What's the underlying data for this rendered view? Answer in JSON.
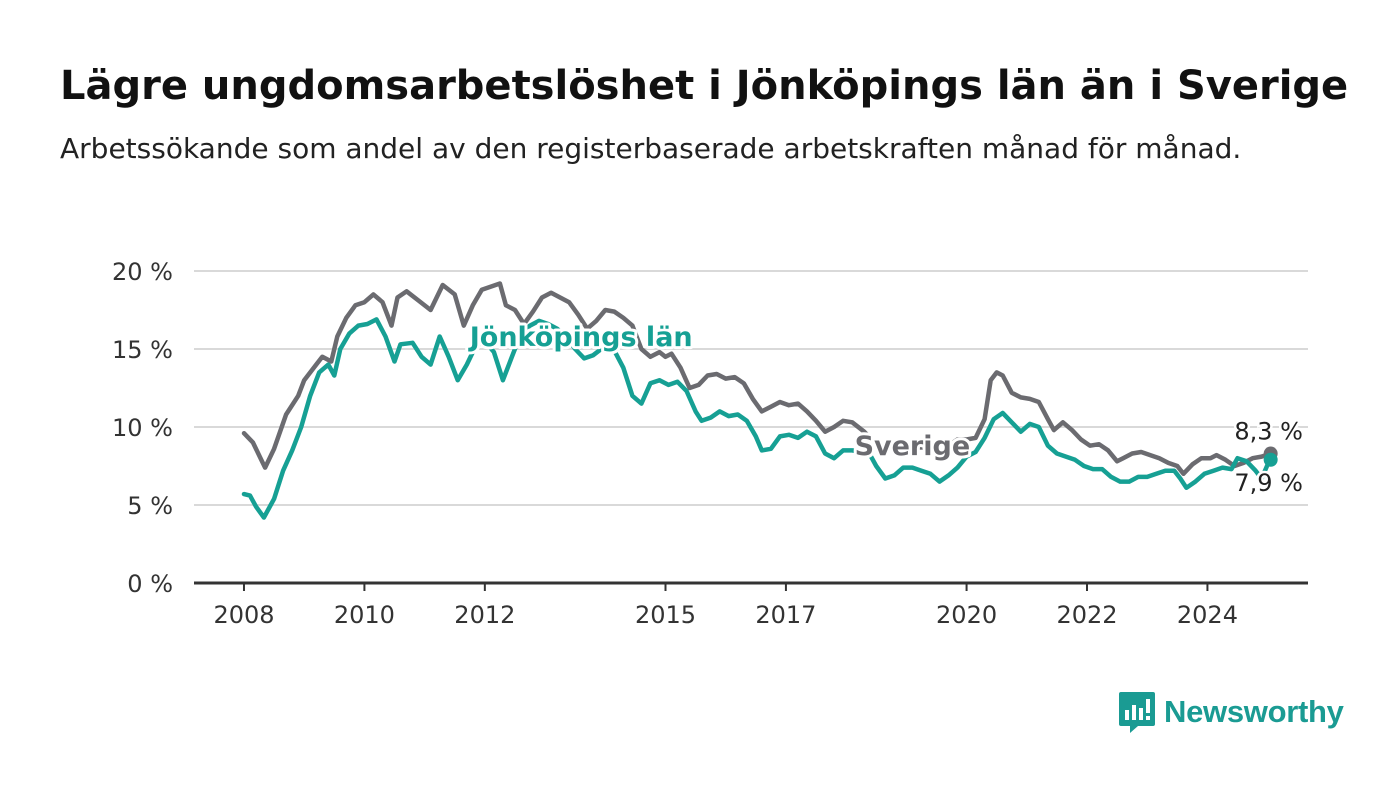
{
  "title": "Lägre ungdomsarbetslöshet i Jönköpings län än i Sverige",
  "subtitle": "Arbetssökande som andel av den registerbaserade arbetskraften månad för månad.",
  "brand": {
    "name": "Newsworthy",
    "icon": "newsworthy-logo-icon",
    "color": "#1a9b93"
  },
  "chart_data": {
    "type": "line",
    "title": "Lägre ungdomsarbetslöshet i Jönköpings län än i Sverige",
    "subtitle": "Arbetssökande som andel av den registerbaserade arbetskraften månad för månad.",
    "xlabel": "",
    "ylabel": "",
    "x_ticks": [
      2008,
      2010,
      2012,
      2015,
      2017,
      2020,
      2022,
      2024
    ],
    "y_ticks": [
      0,
      5,
      10,
      15,
      20
    ],
    "y_tick_labels": [
      "0 %",
      "5 %",
      "10 %",
      "15 %",
      "20 %"
    ],
    "xlim": [
      2007.17,
      2025.67
    ],
    "ylim": [
      0,
      20
    ],
    "grid": true,
    "legend": "direct labels on lines",
    "series": [
      {
        "name": "Sverige",
        "color": "#6b6b70",
        "end_label": "8,3 %",
        "points": [
          [
            2008.0,
            9.6
          ],
          [
            2008.15,
            9.0
          ],
          [
            2008.3,
            7.8
          ],
          [
            2008.35,
            7.4
          ],
          [
            2008.5,
            8.6
          ],
          [
            2008.7,
            10.8
          ],
          [
            2008.9,
            12.0
          ],
          [
            2009.0,
            13.0
          ],
          [
            2009.2,
            14.0
          ],
          [
            2009.3,
            14.5
          ],
          [
            2009.45,
            14.2
          ],
          [
            2009.55,
            15.8
          ],
          [
            2009.7,
            17.0
          ],
          [
            2009.85,
            17.8
          ],
          [
            2010.0,
            18.0
          ],
          [
            2010.15,
            18.5
          ],
          [
            2010.3,
            18.0
          ],
          [
            2010.45,
            16.5
          ],
          [
            2010.55,
            18.3
          ],
          [
            2010.7,
            18.7
          ],
          [
            2010.9,
            18.1
          ],
          [
            2011.1,
            17.5
          ],
          [
            2011.3,
            19.1
          ],
          [
            2011.5,
            18.5
          ],
          [
            2011.65,
            16.5
          ],
          [
            2011.8,
            17.8
          ],
          [
            2011.95,
            18.8
          ],
          [
            2012.1,
            19.0
          ],
          [
            2012.25,
            19.2
          ],
          [
            2012.35,
            17.8
          ],
          [
            2012.5,
            17.5
          ],
          [
            2012.65,
            16.6
          ],
          [
            2012.8,
            17.4
          ],
          [
            2012.95,
            18.3
          ],
          [
            2013.1,
            18.6
          ],
          [
            2013.25,
            18.3
          ],
          [
            2013.4,
            18.0
          ],
          [
            2013.55,
            17.2
          ],
          [
            2013.7,
            16.3
          ],
          [
            2013.85,
            16.8
          ],
          [
            2014.0,
            17.5
          ],
          [
            2014.15,
            17.4
          ],
          [
            2014.3,
            17.0
          ],
          [
            2014.45,
            16.5
          ],
          [
            2014.6,
            15.0
          ],
          [
            2014.75,
            14.5
          ],
          [
            2014.9,
            14.8
          ],
          [
            2015.0,
            14.5
          ],
          [
            2015.1,
            14.7
          ],
          [
            2015.25,
            13.8
          ],
          [
            2015.4,
            12.5
          ],
          [
            2015.55,
            12.7
          ],
          [
            2015.7,
            13.3
          ],
          [
            2015.85,
            13.4
          ],
          [
            2016.0,
            13.1
          ],
          [
            2016.15,
            13.2
          ],
          [
            2016.3,
            12.8
          ],
          [
            2016.45,
            11.8
          ],
          [
            2016.6,
            11.0
          ],
          [
            2016.75,
            11.3
          ],
          [
            2016.9,
            11.6
          ],
          [
            2017.05,
            11.4
          ],
          [
            2017.2,
            11.5
          ],
          [
            2017.35,
            11.0
          ],
          [
            2017.5,
            10.4
          ],
          [
            2017.65,
            9.7
          ],
          [
            2017.8,
            10.0
          ],
          [
            2017.95,
            10.4
          ],
          [
            2018.1,
            10.3
          ],
          [
            2018.3,
            9.7
          ],
          [
            2018.45,
            9.1
          ],
          [
            2018.6,
            8.7
          ],
          [
            2018.8,
            8.7
          ],
          [
            2018.95,
            8.9
          ],
          [
            2019.1,
            8.6
          ],
          [
            2019.25,
            8.7
          ],
          [
            2019.4,
            8.5
          ],
          [
            2019.55,
            8.3
          ],
          [
            2019.7,
            8.8
          ],
          [
            2019.85,
            9.2
          ],
          [
            2020.0,
            9.2
          ],
          [
            2020.15,
            9.3
          ],
          [
            2020.3,
            10.5
          ],
          [
            2020.4,
            13.0
          ],
          [
            2020.5,
            13.5
          ],
          [
            2020.6,
            13.3
          ],
          [
            2020.75,
            12.2
          ],
          [
            2020.9,
            11.9
          ],
          [
            2021.05,
            11.8
          ],
          [
            2021.2,
            11.6
          ],
          [
            2021.35,
            10.5
          ],
          [
            2021.45,
            9.8
          ],
          [
            2021.6,
            10.3
          ],
          [
            2021.75,
            9.8
          ],
          [
            2021.9,
            9.2
          ],
          [
            2022.05,
            8.8
          ],
          [
            2022.2,
            8.9
          ],
          [
            2022.35,
            8.5
          ],
          [
            2022.5,
            7.8
          ],
          [
            2022.6,
            8.0
          ],
          [
            2022.75,
            8.3
          ],
          [
            2022.9,
            8.4
          ],
          [
            2023.05,
            8.2
          ],
          [
            2023.2,
            8.0
          ],
          [
            2023.35,
            7.7
          ],
          [
            2023.5,
            7.5
          ],
          [
            2023.6,
            7.0
          ],
          [
            2023.75,
            7.6
          ],
          [
            2023.9,
            8.0
          ],
          [
            2024.05,
            8.0
          ],
          [
            2024.15,
            8.2
          ],
          [
            2024.3,
            7.9
          ],
          [
            2024.45,
            7.5
          ],
          [
            2024.6,
            7.7
          ],
          [
            2024.75,
            8.0
          ],
          [
            2024.9,
            8.1
          ],
          [
            2025.05,
            8.3
          ]
        ]
      },
      {
        "name": "Jönköpings län",
        "color": "#16a094",
        "end_label": "7,9 %",
        "points": [
          [
            2008.0,
            5.7
          ],
          [
            2008.1,
            5.6
          ],
          [
            2008.2,
            4.9
          ],
          [
            2008.33,
            4.2
          ],
          [
            2008.5,
            5.4
          ],
          [
            2008.65,
            7.2
          ],
          [
            2008.8,
            8.5
          ],
          [
            2008.95,
            10.0
          ],
          [
            2009.1,
            12.0
          ],
          [
            2009.25,
            13.5
          ],
          [
            2009.4,
            14.0
          ],
          [
            2009.5,
            13.3
          ],
          [
            2009.6,
            15.0
          ],
          [
            2009.75,
            16.0
          ],
          [
            2009.9,
            16.5
          ],
          [
            2010.05,
            16.6
          ],
          [
            2010.2,
            16.9
          ],
          [
            2010.35,
            15.8
          ],
          [
            2010.5,
            14.2
          ],
          [
            2010.6,
            15.3
          ],
          [
            2010.8,
            15.4
          ],
          [
            2010.95,
            14.5
          ],
          [
            2011.1,
            14.0
          ],
          [
            2011.25,
            15.8
          ],
          [
            2011.4,
            14.5
          ],
          [
            2011.55,
            13.0
          ],
          [
            2011.7,
            14.0
          ],
          [
            2011.85,
            15.2
          ],
          [
            2012.0,
            15.5
          ],
          [
            2012.15,
            14.8
          ],
          [
            2012.3,
            13.0
          ],
          [
            2012.45,
            14.5
          ],
          [
            2012.6,
            16.0
          ],
          [
            2012.75,
            16.5
          ],
          [
            2012.9,
            16.8
          ],
          [
            2013.05,
            16.6
          ],
          [
            2013.2,
            16.3
          ],
          [
            2013.35,
            15.8
          ],
          [
            2013.5,
            15.0
          ],
          [
            2013.65,
            14.4
          ],
          [
            2013.8,
            14.6
          ],
          [
            2014.0,
            15.2
          ],
          [
            2014.15,
            14.9
          ],
          [
            2014.3,
            13.8
          ],
          [
            2014.45,
            12.0
          ],
          [
            2014.6,
            11.5
          ],
          [
            2014.75,
            12.8
          ],
          [
            2014.9,
            13.0
          ],
          [
            2015.05,
            12.7
          ],
          [
            2015.2,
            12.9
          ],
          [
            2015.35,
            12.3
          ],
          [
            2015.5,
            11.0
          ],
          [
            2015.6,
            10.4
          ],
          [
            2015.75,
            10.6
          ],
          [
            2015.9,
            11.0
          ],
          [
            2016.05,
            10.7
          ],
          [
            2016.2,
            10.8
          ],
          [
            2016.35,
            10.4
          ],
          [
            2016.5,
            9.4
          ],
          [
            2016.6,
            8.5
          ],
          [
            2016.75,
            8.6
          ],
          [
            2016.9,
            9.4
          ],
          [
            2017.05,
            9.5
          ],
          [
            2017.2,
            9.3
          ],
          [
            2017.35,
            9.7
          ],
          [
            2017.5,
            9.4
          ],
          [
            2017.65,
            8.3
          ],
          [
            2017.8,
            8.0
          ],
          [
            2017.95,
            8.5
          ],
          [
            2018.1,
            8.5
          ],
          [
            2018.25,
            8.4
          ],
          [
            2018.4,
            8.2
          ],
          [
            2018.5,
            7.5
          ],
          [
            2018.65,
            6.7
          ],
          [
            2018.8,
            6.9
          ],
          [
            2018.95,
            7.4
          ],
          [
            2019.1,
            7.4
          ],
          [
            2019.25,
            7.2
          ],
          [
            2019.4,
            7.0
          ],
          [
            2019.55,
            6.5
          ],
          [
            2019.7,
            6.9
          ],
          [
            2019.85,
            7.4
          ],
          [
            2020.0,
            8.1
          ],
          [
            2020.15,
            8.4
          ],
          [
            2020.3,
            9.3
          ],
          [
            2020.45,
            10.5
          ],
          [
            2020.6,
            10.9
          ],
          [
            2020.75,
            10.3
          ],
          [
            2020.9,
            9.7
          ],
          [
            2021.05,
            10.2
          ],
          [
            2021.2,
            10.0
          ],
          [
            2021.35,
            8.8
          ],
          [
            2021.5,
            8.3
          ],
          [
            2021.65,
            8.1
          ],
          [
            2021.8,
            7.9
          ],
          [
            2021.95,
            7.5
          ],
          [
            2022.1,
            7.3
          ],
          [
            2022.25,
            7.3
          ],
          [
            2022.4,
            6.8
          ],
          [
            2022.55,
            6.5
          ],
          [
            2022.7,
            6.5
          ],
          [
            2022.85,
            6.8
          ],
          [
            2023.0,
            6.8
          ],
          [
            2023.15,
            7.0
          ],
          [
            2023.3,
            7.2
          ],
          [
            2023.45,
            7.2
          ],
          [
            2023.55,
            6.7
          ],
          [
            2023.65,
            6.1
          ],
          [
            2023.8,
            6.5
          ],
          [
            2023.95,
            7.0
          ],
          [
            2024.1,
            7.2
          ],
          [
            2024.25,
            7.4
          ],
          [
            2024.4,
            7.3
          ],
          [
            2024.5,
            8.0
          ],
          [
            2024.65,
            7.8
          ],
          [
            2024.8,
            7.2
          ],
          [
            2024.9,
            6.7
          ],
          [
            2025.0,
            7.6
          ],
          [
            2025.05,
            7.9
          ]
        ]
      }
    ],
    "annotations": [
      {
        "text": "Jönköpings län",
        "series": "Jönköpings län",
        "x": 2013.6,
        "y": 15.2
      },
      {
        "text": "Sverige",
        "series": "Sverige",
        "x": 2019.1,
        "y": 8.2
      }
    ]
  }
}
